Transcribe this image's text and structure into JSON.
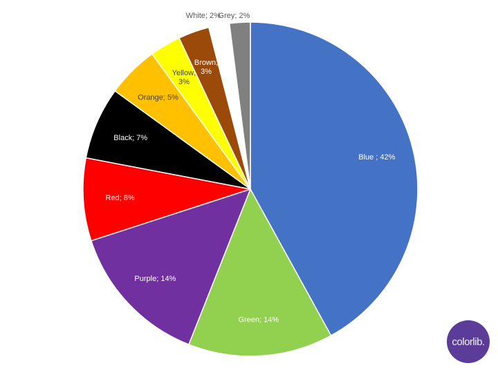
{
  "chart_data": {
    "type": "pie",
    "title": "",
    "start": "top",
    "direction": "clockwise",
    "slices": [
      {
        "label": "Blue ; 42%",
        "value": 42,
        "color": "#4472c4",
        "text_color": "#ffffff"
      },
      {
        "label": "Green; 14%",
        "value": 14,
        "color": "#92d050",
        "text_color": "#ffffff"
      },
      {
        "label": "Purple; 14%",
        "value": 14,
        "color": "#7030a0",
        "text_color": "#ffffff"
      },
      {
        "label": "Red; 8%",
        "value": 8,
        "color": "#ff0000",
        "text_color": "#ffffff"
      },
      {
        "label": "Black; 7%",
        "value": 7,
        "color": "#000000",
        "text_color": "#ffffff"
      },
      {
        "label": "Orange; 5%",
        "value": 5,
        "color": "#ffc000",
        "text_color": "#404040"
      },
      {
        "label": "Yellow;\n3%",
        "value": 3,
        "color": "#ffff00",
        "text_color": "#404040"
      },
      {
        "label": "Brown;\n3%",
        "value": 3,
        "color": "#9c4a0a",
        "text_color": "#ffffff"
      },
      {
        "label": "White; 2%",
        "value": 2,
        "color": "#ffffff",
        "text_color": "#595959",
        "outside": true
      },
      {
        "label": "Grey; 2%",
        "value": 2,
        "color": "#808080",
        "text_color": "#595959",
        "outside": true
      }
    ]
  },
  "logo": {
    "text": "colorlib."
  }
}
